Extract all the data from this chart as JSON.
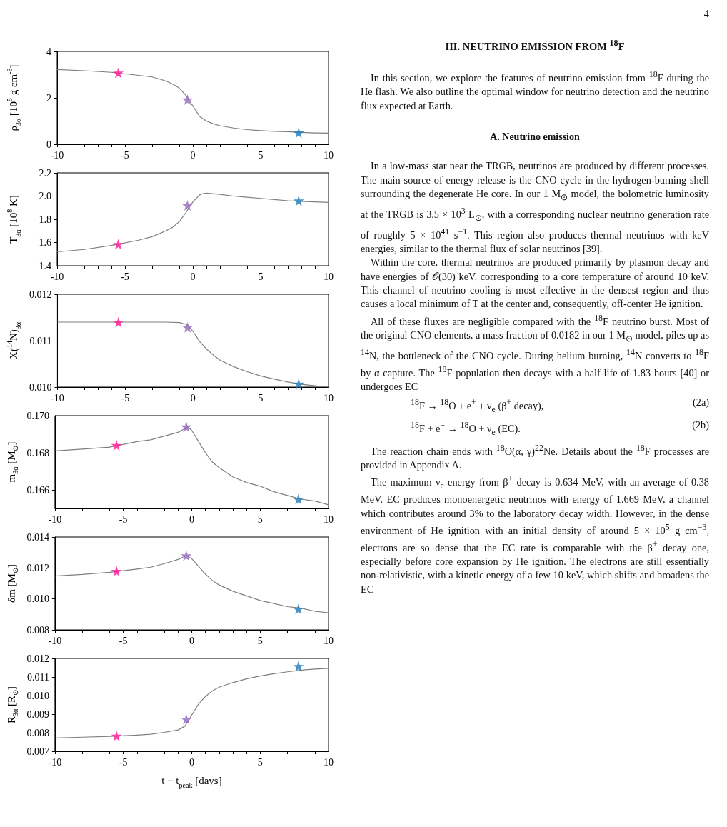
{
  "chart_data": [
    {
      "type": "line",
      "ylabel": "ρ$_{3α}$ [10$^{5}$ g cm$^{-3}$]",
      "xlim": [
        -10,
        10
      ],
      "xticks": [
        -10,
        {
          "value": -9,
          "label": null
        },
        {
          "value": -8,
          "label": null
        },
        {
          "value": -7,
          "label": null
        },
        {
          "value": -6,
          "label": null
        },
        -5,
        {
          "value": -4,
          "label": null
        },
        {
          "value": -3,
          "label": null
        },
        {
          "value": -2,
          "label": null
        },
        {
          "value": -1,
          "label": null
        },
        0,
        {
          "value": 1,
          "label": null
        },
        {
          "value": 2,
          "label": null
        },
        {
          "value": 3,
          "label": null
        },
        {
          "value": 4,
          "label": null
        },
        5,
        {
          "value": 6,
          "label": null
        },
        {
          "value": 7,
          "label": null
        },
        {
          "value": 8,
          "label": null
        },
        {
          "value": 9,
          "label": null
        },
        10
      ],
      "ylim": [
        0,
        4
      ],
      "yticks": [
        0,
        2,
        4
      ],
      "series": [
        {
          "type": "line",
          "color": "#7f7f7f",
          "marker": "none",
          "x": [
            -10,
            -8,
            -6,
            -4,
            -3,
            -2,
            -1.5,
            -1,
            -0.5,
            0,
            0.5,
            1,
            1.5,
            2,
            3,
            4,
            5,
            6,
            7,
            8,
            9,
            10
          ],
          "values": [
            3.22,
            3.17,
            3.1,
            2.97,
            2.9,
            2.73,
            2.6,
            2.42,
            2.1,
            1.65,
            1.2,
            1.0,
            0.88,
            0.8,
            0.7,
            0.63,
            0.59,
            0.56,
            0.54,
            0.51,
            0.49,
            0.48
          ]
        },
        {
          "type": "scatter",
          "marker": "star",
          "x": [
            -5.5,
            -0.4,
            7.8
          ],
          "values": [
            3.08,
            1.92,
            0.5
          ],
          "colors": [
            "#ff1493",
            "#9467bd",
            "#1f77b4"
          ]
        }
      ]
    },
    {
      "type": "line",
      "ylabel": "T$_{3α}$ [10$^{8}$ K]",
      "xlim": [
        -10,
        10
      ],
      "xticks": [
        -10,
        {
          "value": -9,
          "label": null
        },
        {
          "value": -8,
          "label": null
        },
        {
          "value": -7,
          "label": null
        },
        {
          "value": -6,
          "label": null
        },
        -5,
        {
          "value": -4,
          "label": null
        },
        {
          "value": -3,
          "label": null
        },
        {
          "value": -2,
          "label": null
        },
        {
          "value": -1,
          "label": null
        },
        0,
        {
          "value": 1,
          "label": null
        },
        {
          "value": 2,
          "label": null
        },
        {
          "value": 3,
          "label": null
        },
        {
          "value": 4,
          "label": null
        },
        5,
        {
          "value": 6,
          "label": null
        },
        {
          "value": 7,
          "label": null
        },
        {
          "value": 8,
          "label": null
        },
        {
          "value": 9,
          "label": null
        },
        10
      ],
      "ylim": [
        1.4,
        2.2
      ],
      "yticks": [
        1.4,
        1.6,
        1.8,
        {
          "value": 2.0,
          "label": "2.0"
        },
        2.2
      ],
      "series": [
        {
          "type": "line",
          "color": "#7f7f7f",
          "marker": "none",
          "x": [
            -10,
            -8,
            -6,
            -4,
            -3,
            -2,
            -1.5,
            -1,
            -0.5,
            0,
            0.5,
            0.7,
            1,
            2,
            3,
            4,
            5,
            6,
            7,
            8,
            9,
            10
          ],
          "values": [
            1.52,
            1.54,
            1.575,
            1.62,
            1.65,
            1.7,
            1.73,
            1.78,
            1.86,
            1.95,
            2.01,
            2.02,
            2.025,
            2.015,
            2.0,
            1.99,
            1.98,
            1.97,
            1.96,
            1.955,
            1.95,
            1.945
          ]
        },
        {
          "type": "scatter",
          "marker": "star",
          "x": [
            -5.5,
            -0.4,
            7.8
          ],
          "values": [
            1.585,
            1.92,
            1.96
          ],
          "colors": [
            "#ff1493",
            "#9467bd",
            "#1f77b4"
          ]
        }
      ]
    },
    {
      "type": "line",
      "ylabel": "X($^{14}$N)$_{3α}$",
      "xlim": [
        -10,
        10
      ],
      "xticks": [
        -10,
        {
          "value": -9,
          "label": null
        },
        {
          "value": -8,
          "label": null
        },
        {
          "value": -7,
          "label": null
        },
        {
          "value": -6,
          "label": null
        },
        -5,
        {
          "value": -4,
          "label": null
        },
        {
          "value": -3,
          "label": null
        },
        {
          "value": -2,
          "label": null
        },
        {
          "value": -1,
          "label": null
        },
        0,
        {
          "value": 1,
          "label": null
        },
        {
          "value": 2,
          "label": null
        },
        {
          "value": 3,
          "label": null
        },
        {
          "value": 4,
          "label": null
        },
        5,
        {
          "value": 6,
          "label": null
        },
        {
          "value": 7,
          "label": null
        },
        {
          "value": 8,
          "label": null
        },
        {
          "value": 9,
          "label": null
        },
        10
      ],
      "ylim": [
        0.01,
        0.012
      ],
      "yticks": [
        {
          "value": 0.01,
          "label": "0.010"
        },
        0.011,
        0.012
      ],
      "series": [
        {
          "type": "line",
          "color": "#7f7f7f",
          "marker": "none",
          "x": [
            -10,
            -8,
            -6,
            -4,
            -3,
            -2,
            -1,
            -0.5,
            0,
            0.5,
            1,
            1.5,
            2,
            3,
            4,
            5,
            6,
            7,
            8,
            9,
            10
          ],
          "values": [
            0.0114,
            0.0114,
            0.0114,
            0.0114,
            0.0114,
            0.0114,
            0.01139,
            0.01135,
            0.0112,
            0.01098,
            0.01082,
            0.01069,
            0.01058,
            0.01044,
            0.01033,
            0.01024,
            0.01017,
            0.01011,
            0.01006,
            0.01003,
            0.01
          ]
        },
        {
          "type": "scatter",
          "marker": "star",
          "x": [
            -5.5,
            -0.4,
            7.8
          ],
          "values": [
            0.0114,
            0.01129,
            0.01007
          ],
          "colors": [
            "#ff1493",
            "#9467bd",
            "#1f77b4"
          ]
        }
      ]
    },
    {
      "type": "line",
      "ylabel": "m$_{3α}$ [M$_{⊙}$]",
      "xlim": [
        -10,
        10
      ],
      "xticks": [
        -10,
        {
          "value": -9,
          "label": null
        },
        {
          "value": -8,
          "label": null
        },
        {
          "value": -7,
          "label": null
        },
        {
          "value": -6,
          "label": null
        },
        -5,
        {
          "value": -4,
          "label": null
        },
        {
          "value": -3,
          "label": null
        },
        {
          "value": -2,
          "label": null
        },
        {
          "value": -1,
          "label": null
        },
        0,
        {
          "value": 1,
          "label": null
        },
        {
          "value": 2,
          "label": null
        },
        {
          "value": 3,
          "label": null
        },
        {
          "value": 4,
          "label": null
        },
        5,
        {
          "value": 6,
          "label": null
        },
        {
          "value": 7,
          "label": null
        },
        {
          "value": 8,
          "label": null
        },
        {
          "value": 9,
          "label": null
        },
        10
      ],
      "ylim": [
        0.165,
        0.17
      ],
      "yticks": [
        0.166,
        0.168,
        {
          "value": 0.17,
          "label": "0.170"
        }
      ],
      "series": [
        {
          "type": "line",
          "color": "#7f7f7f",
          "marker": "none",
          "x": [
            -10,
            -8,
            -6,
            -4,
            -3,
            -2,
            -1,
            -0.5,
            -0.3,
            0,
            0.5,
            1,
            1.5,
            2,
            3,
            4,
            5,
            6,
            7,
            8,
            9,
            10
          ],
          "values": [
            0.1681,
            0.1682,
            0.1683,
            0.1686,
            0.1687,
            0.1689,
            0.1691,
            0.1693,
            0.1694,
            0.1692,
            0.1686,
            0.168,
            0.1675,
            0.1672,
            0.1667,
            0.1664,
            0.1662,
            0.1659,
            0.1657,
            0.1655,
            0.1654,
            0.1652
          ]
        },
        {
          "type": "scatter",
          "marker": "star",
          "x": [
            -5.5,
            -0.4,
            7.8
          ],
          "values": [
            0.1684,
            0.1694,
            0.1655
          ],
          "colors": [
            "#ff1493",
            "#9467bd",
            "#1f77b4"
          ]
        }
      ]
    },
    {
      "type": "line",
      "ylabel": "δm [M$_{⊙}$]",
      "xlim": [
        -10,
        10
      ],
      "xticks": [
        -10,
        {
          "value": -9,
          "label": null
        },
        {
          "value": -8,
          "label": null
        },
        {
          "value": -7,
          "label": null
        },
        {
          "value": -6,
          "label": null
        },
        -5,
        {
          "value": -4,
          "label": null
        },
        {
          "value": -3,
          "label": null
        },
        {
          "value": -2,
          "label": null
        },
        {
          "value": -1,
          "label": null
        },
        0,
        {
          "value": 1,
          "label": null
        },
        {
          "value": 2,
          "label": null
        },
        {
          "value": 3,
          "label": null
        },
        {
          "value": 4,
          "label": null
        },
        5,
        {
          "value": 6,
          "label": null
        },
        {
          "value": 7,
          "label": null
        },
        {
          "value": 8,
          "label": null
        },
        {
          "value": 9,
          "label": null
        },
        10
      ],
      "ylim": [
        0.008,
        0.014
      ],
      "yticks": [
        0.008,
        {
          "value": 0.01,
          "label": "0.010"
        },
        0.012,
        0.014
      ],
      "series": [
        {
          "type": "line",
          "color": "#7f7f7f",
          "marker": "none",
          "x": [
            -10,
            -8,
            -6,
            -4,
            -3,
            -2,
            -1,
            -0.4,
            0,
            0.5,
            1,
            1.5,
            2,
            3,
            4,
            5,
            6,
            7,
            8,
            9,
            10
          ],
          "values": [
            0.01148,
            0.01158,
            0.01172,
            0.01193,
            0.01205,
            0.01228,
            0.01255,
            0.0128,
            0.0126,
            0.0121,
            0.0116,
            0.0112,
            0.0109,
            0.0105,
            0.0102,
            0.0099,
            0.0097,
            0.0095,
            0.0094,
            0.0092,
            0.0091
          ]
        },
        {
          "type": "scatter",
          "marker": "star",
          "x": [
            -5.5,
            -0.4,
            7.8
          ],
          "values": [
            0.0118,
            0.0128,
            0.00935
          ],
          "colors": [
            "#ff1493",
            "#9467bd",
            "#1f77b4"
          ]
        }
      ]
    },
    {
      "type": "line",
      "ylabel": "R$_{3α}$ [R$_{⊙}$]",
      "xlabel": "t − t$_{peak}$ [days]",
      "xlim": [
        -10,
        10
      ],
      "xticks": [
        -10,
        {
          "value": -9,
          "label": null
        },
        {
          "value": -8,
          "label": null
        },
        {
          "value": -7,
          "label": null
        },
        {
          "value": -6,
          "label": null
        },
        -5,
        {
          "value": -4,
          "label": null
        },
        {
          "value": -3,
          "label": null
        },
        {
          "value": -2,
          "label": null
        },
        {
          "value": -1,
          "label": null
        },
        0,
        {
          "value": 1,
          "label": null
        },
        {
          "value": 2,
          "label": null
        },
        {
          "value": 3,
          "label": null
        },
        {
          "value": 4,
          "label": null
        },
        5,
        {
          "value": 6,
          "label": null
        },
        {
          "value": 7,
          "label": null
        },
        {
          "value": 8,
          "label": null
        },
        {
          "value": 9,
          "label": null
        },
        10
      ],
      "ylim": [
        0.007,
        0.012
      ],
      "yticks": [
        0.007,
        0.008,
        0.009,
        {
          "value": 0.01,
          "label": "0.010"
        },
        0.011,
        0.012
      ],
      "series": [
        {
          "type": "line",
          "color": "#7f7f7f",
          "marker": "none",
          "x": [
            -10,
            -8,
            -6,
            -4,
            -3,
            -2,
            -1,
            -0.5,
            0,
            0.5,
            1,
            1.5,
            2,
            3,
            4,
            5,
            6,
            7,
            8,
            9,
            10
          ],
          "values": [
            0.00772,
            0.00776,
            0.0078,
            0.00787,
            0.00792,
            0.00802,
            0.00815,
            0.00835,
            0.00895,
            0.00955,
            0.00995,
            0.01025,
            0.01045,
            0.0107,
            0.0109,
            0.01105,
            0.01118,
            0.01128,
            0.01137,
            0.01143,
            0.01147
          ]
        },
        {
          "type": "scatter",
          "marker": "star",
          "x": [
            -5.5,
            -0.4,
            7.8
          ],
          "values": [
            0.00783,
            0.00873,
            0.01158
          ],
          "colors": [
            "#ff1493",
            "#9467bd",
            "#1f77b4"
          ]
        }
      ]
    },
    {
      "type": "other",
      "title": "III.   NEUTRINO EMISSION FROM $^{18}$F",
      "annotations": [
        "4",
        "In this section, we explore the features of neutrino emission from $^{18}$F during the He flash. We also outline the optimal window for neutrino detection and the neutrino flux expected at Earth.",
        "A.   Neutrino emission",
        "In a low-mass star near the TRGB, neutrinos are produced by different processes. The main source of energy release is the CNO cycle in the hydrogen-burning shell surrounding the degenerate He core. In our 1 M$_{⊙}$ model, the bolometric luminosity at the TRGB is 3.5 × 10$^{3}$ L$_{⊙}$, with a corresponding nuclear neutrino generation rate of roughly 5 × 10$^{41}$ s$^{−1}$. This region also produces thermal neutrinos with keV energies, similar to the thermal flux of solar neutrinos [39].",
        "Within the core, thermal neutrinos are produced primarily by plasmon decay and have energies of 𝒪(30) keV, corresponding to a core temperature of around 10 keV. This channel of neutrino cooling is most effective in the densest region and thus causes a local minimum of T at the center and, consequently, off-center He ignition.",
        "All of these fluxes are negligible compared with the $^{18}$F neutrino burst. Most of the original CNO elements, a mass fraction of 0.0182 in our 1 M$_{⊙}$ model, piles up as $^{14}$N, the bottleneck of the CNO cycle. During helium burning, $^{14}$N converts to $^{18}$F by α capture. The $^{18}$F population then decays with a half-life of 1.83 hours [40] or undergoes EC",
        "$^{18}$F → $^{18}$O + e$^{+}$ + ν$_{e}$   (β$^{+}$ decay),",
        "(2a)",
        "$^{18}$F + e$^{−}$ → $^{18}$O + ν$_{e}$   (EC).",
        "(2b)",
        "The reaction chain ends with $^{18}$O(α, γ)$^{22}$Ne. Details about the $^{18}$F processes are provided in Appendix A.",
        "The maximum ν$_{e}$ energy from β$^{+}$ decay is 0.634 MeV, with an average of 0.38 MeV. EC produces monoenergetic neutrinos with energy of 1.669 MeV, a channel which contributes around 3% to the laboratory decay width. However, in the dense environment of He ignition with an initial density of around 5 × 10$^{5}$ g cm$^{−3}$, electrons are so dense that the EC rate is comparable with the β$^{+}$ decay one, especially before core expansion by He ignition. The electrons are still essentially non-relativistic, with a kinetic energy of a few 10 keV, which shifts and broadens the EC"
      ]
    }
  ]
}
